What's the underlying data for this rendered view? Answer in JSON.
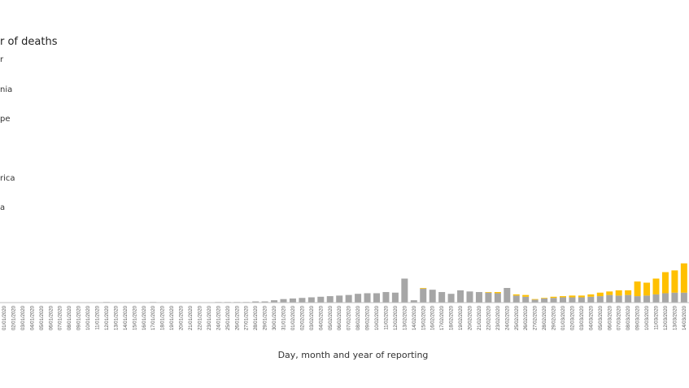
{
  "chart_data": {
    "type": "bar",
    "stacked": true,
    "title": "r of deaths",
    "xlabel": "Day, month and year of reporting",
    "ylabel": "",
    "ylim": [
      0,
      300
    ],
    "grid": false,
    "legend_position": "left",
    "legend_visible_text": [
      "r",
      "nia",
      "pe",
      "rica",
      "a"
    ],
    "colors": {
      "Asia": "#A6A6A6",
      "Europe": "#FFC000",
      "America": "#ED7D31"
    },
    "categories": [
      "01/01/2020",
      "02/01/2020",
      "03/01/2020",
      "04/01/2020",
      "05/01/2020",
      "06/01/2020",
      "07/01/2020",
      "08/01/2020",
      "09/01/2020",
      "10/01/2020",
      "11/01/2020",
      "12/01/2020",
      "13/01/2020",
      "14/01/2020",
      "15/01/2020",
      "16/01/2020",
      "17/01/2020",
      "18/01/2020",
      "19/01/2020",
      "20/01/2020",
      "21/01/2020",
      "22/01/2020",
      "23/01/2020",
      "24/01/2020",
      "25/01/2020",
      "26/01/2020",
      "27/01/2020",
      "28/01/2020",
      "29/01/2020",
      "30/01/2020",
      "31/01/2020",
      "01/02/2020",
      "02/02/2020",
      "03/02/2020",
      "04/02/2020",
      "05/02/2020",
      "06/02/2020",
      "07/02/2020",
      "08/02/2020",
      "09/02/2020",
      "10/02/2020",
      "11/02/2020",
      "12/02/2020",
      "13/02/2020",
      "14/02/2020",
      "15/02/2020",
      "16/02/2020",
      "17/02/2020",
      "18/02/2020",
      "19/02/2020",
      "20/02/2020",
      "21/02/2020",
      "22/02/2020",
      "23/02/2020",
      "24/02/2020",
      "25/02/2020",
      "26/02/2020",
      "27/02/2020",
      "28/02/2020",
      "29/02/2020",
      "01/03/2020",
      "02/03/2020",
      "03/03/2020",
      "04/03/2020",
      "05/03/2020",
      "06/03/2020",
      "07/03/2020",
      "08/03/2020",
      "09/03/2020",
      "10/03/2020",
      "11/03/2020",
      "12/03/2020",
      "13/03/2020",
      "14/03/2020",
      "15/03/2020",
      "16/03/2020",
      "17/03/2020",
      "18/03/2020",
      "19/03/2020"
    ],
    "series": [
      {
        "key": "asia",
        "color": "#A6A6A6",
        "values": [
          0,
          0,
          0,
          0,
          0,
          0,
          0,
          0,
          0,
          0,
          0,
          1,
          0,
          0,
          0,
          0,
          1,
          0,
          0,
          0,
          0,
          0,
          0,
          1,
          1,
          1,
          1,
          2,
          2,
          4,
          6,
          7,
          8,
          9,
          10,
          11,
          12,
          13,
          15,
          16,
          16,
          18,
          17,
          41,
          4,
          24,
          22,
          18,
          15,
          21,
          19,
          18,
          17,
          16,
          25,
          12,
          10,
          5,
          7,
          8,
          9,
          9,
          9,
          10,
          11,
          13,
          12,
          13,
          11,
          12,
          14,
          16,
          17,
          17,
          18,
          18,
          23,
          31,
          35
        ]
      },
      {
        "key": "europe",
        "color": "#FFC000",
        "values": [
          0,
          0,
          0,
          0,
          0,
          0,
          0,
          0,
          0,
          0,
          0,
          0,
          0,
          0,
          0,
          0,
          0,
          0,
          0,
          0,
          0,
          0,
          0,
          0,
          0,
          0,
          0,
          0,
          0,
          0,
          0,
          0,
          0,
          0,
          0,
          0,
          0,
          0,
          0,
          0,
          0,
          0,
          0,
          0,
          0,
          1,
          0,
          0,
          0,
          0,
          0,
          0,
          1,
          2,
          0,
          2,
          3,
          1,
          1,
          2,
          2,
          3,
          3,
          4,
          6,
          6,
          9,
          8,
          25,
          22,
          27,
          36,
          38,
          50,
          37,
          115,
          92,
          110,
          128
        ]
      },
      {
        "key": "america",
        "color": "#ED7D31",
        "values": [
          0,
          0,
          0,
          0,
          0,
          0,
          0,
          0,
          0,
          0,
          0,
          0,
          0,
          0,
          0,
          0,
          0,
          0,
          0,
          0,
          0,
          0,
          0,
          0,
          0,
          0,
          0,
          0,
          0,
          0,
          0,
          0,
          0,
          0,
          0,
          0,
          0,
          0,
          0,
          0,
          0,
          0,
          0,
          0,
          0,
          0,
          0,
          0,
          0,
          0,
          0,
          0,
          0,
          0,
          0,
          0,
          0,
          0,
          0,
          0,
          0,
          0,
          0,
          0,
          0,
          0,
          0,
          0,
          0,
          0,
          0,
          0,
          0,
          0,
          0,
          1,
          2,
          2,
          5
        ]
      }
    ]
  }
}
